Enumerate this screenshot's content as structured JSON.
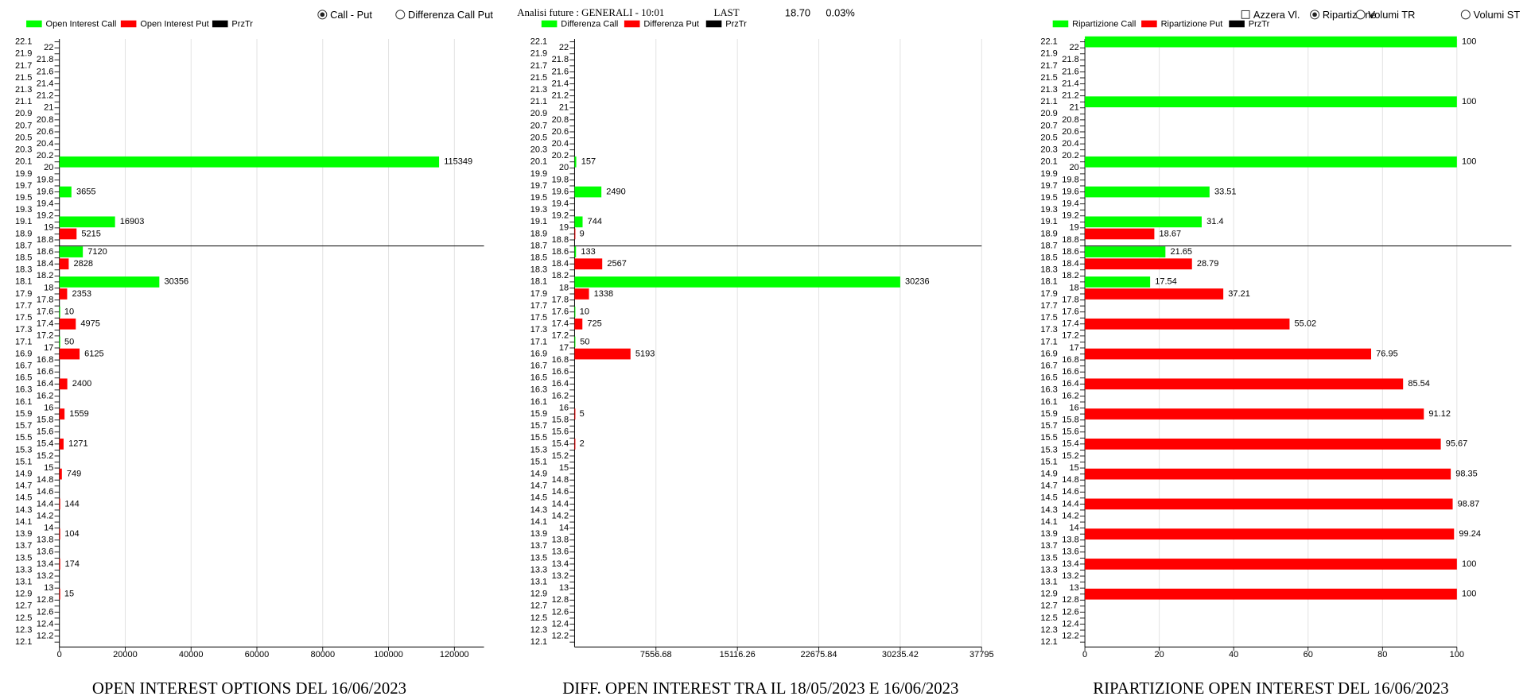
{
  "controls": [
    {
      "type": "radio",
      "label": "Call - Put",
      "checked": true
    },
    {
      "type": "radio",
      "label": "Differenza Call Put",
      "checked": false
    },
    {
      "type": "checkbox",
      "label": "Azzera Vl.",
      "checked": false
    },
    {
      "type": "radio",
      "label": "Ripartizione",
      "checked": true
    },
    {
      "type": "radio",
      "label": "Volumi TR",
      "checked": false
    },
    {
      "type": "radio",
      "label": "Volumi ST",
      "checked": false
    }
  ],
  "header": {
    "analysis": "Analisi future : GENERALI - 10:01",
    "last_label": "LAST",
    "last_price": "18.70",
    "change": "0.03%"
  },
  "chart_data": [
    {
      "type": "bar",
      "orientation": "horizontal",
      "title": "OPEN INTEREST OPTIONS DEL 16/06/2023",
      "x": [
        22,
        21,
        20,
        19.5,
        19,
        18.5,
        18,
        17.5,
        17,
        16.5,
        16,
        15.5,
        15,
        14.5,
        14,
        13.5,
        13
      ],
      "series": [
        {
          "name": "Open Interest Call",
          "color": "#00ff00",
          "values": [
            null,
            null,
            115349,
            3655,
            16903,
            7120,
            30356,
            10,
            50,
            null,
            null,
            null,
            null,
            null,
            null,
            null,
            null
          ]
        },
        {
          "name": "Open Interest Put",
          "color": "#ff0000",
          "values": [
            null,
            null,
            null,
            null,
            5215,
            2828,
            2353,
            4975,
            6125,
            2400,
            1559,
            1271,
            749,
            144,
            104,
            174,
            15
          ]
        }
      ],
      "price_line": {
        "name": "PrzTr",
        "color": "#000000",
        "value": 18.7
      },
      "xlim": [
        0,
        129000
      ],
      "xticks": [
        0,
        20000,
        40000,
        60000,
        80000,
        100000,
        120000
      ],
      "ylim": [
        12.05,
        22.15
      ],
      "yticks": [
        22.1,
        22,
        21.9,
        21.8,
        21.7,
        21.6,
        21.5,
        21.4,
        21.3,
        21.2,
        21.1,
        21,
        20.9,
        20.8,
        20.7,
        20.6,
        20.5,
        20.4,
        20.3,
        20.2,
        20.1,
        20,
        19.9,
        19.8,
        19.7,
        19.6,
        19.5,
        19.4,
        19.3,
        19.2,
        19.1,
        19,
        18.9,
        18.8,
        18.7,
        18.6,
        18.5,
        18.4,
        18.3,
        18.2,
        18.1,
        18,
        17.9,
        17.8,
        17.7,
        17.6,
        17.5,
        17.4,
        17.3,
        17.2,
        17.1,
        17,
        16.9,
        16.8,
        16.7,
        16.6,
        16.5,
        16.4,
        16.3,
        16.2,
        16.1,
        16,
        15.9,
        15.8,
        15.7,
        15.6,
        15.5,
        15.4,
        15.3,
        15.2,
        15.1,
        15,
        14.9,
        14.8,
        14.7,
        14.6,
        14.5,
        14.4,
        14.3,
        14.2,
        14.1,
        14,
        13.9,
        13.8,
        13.7,
        13.6,
        13.5,
        13.4,
        13.3,
        13.2,
        13.1,
        13,
        12.9,
        12.8,
        12.7,
        12.6,
        12.5,
        12.4,
        12.3,
        12.2,
        12.1
      ],
      "grid": true
    },
    {
      "type": "bar",
      "orientation": "horizontal",
      "title": "DIFF. OPEN INTEREST TRA IL 18/05/2023 E 16/06/2023",
      "x": [
        22,
        21,
        20,
        19.5,
        19,
        18.5,
        18,
        17.5,
        17,
        16.5,
        16,
        15.5,
        15,
        14.5,
        14,
        13.5,
        13
      ],
      "series": [
        {
          "name": "Differenza Call",
          "color": "#00ff00",
          "values": [
            null,
            null,
            157,
            2490,
            744,
            133,
            30236,
            10,
            50,
            null,
            null,
            null,
            null,
            null,
            null,
            null,
            null
          ]
        },
        {
          "name": "Differenza Put",
          "color": "#ff0000",
          "values": [
            null,
            null,
            null,
            null,
            9,
            2567,
            1338,
            725,
            5193,
            null,
            5,
            2,
            null,
            null,
            null,
            null,
            null
          ]
        }
      ],
      "price_line": {
        "name": "PrzTr",
        "color": "#000000",
        "value": 18.7
      },
      "xlim": [
        0,
        37795
      ],
      "xticks": [
        7556.68,
        15116.26,
        22675.84,
        30235.42,
        37795
      ],
      "ylim": [
        12.05,
        22.15
      ],
      "yticks": [
        22.1,
        22,
        21.9,
        21.8,
        21.7,
        21.6,
        21.5,
        21.4,
        21.3,
        21.2,
        21.1,
        21,
        20.9,
        20.8,
        20.7,
        20.6,
        20.5,
        20.4,
        20.3,
        20.2,
        20.1,
        20,
        19.9,
        19.8,
        19.7,
        19.6,
        19.5,
        19.4,
        19.3,
        19.2,
        19.1,
        19,
        18.9,
        18.8,
        18.7,
        18.6,
        18.5,
        18.4,
        18.3,
        18.2,
        18.1,
        18,
        17.9,
        17.8,
        17.7,
        17.6,
        17.5,
        17.4,
        17.3,
        17.2,
        17.1,
        17,
        16.9,
        16.8,
        16.7,
        16.6,
        16.5,
        16.4,
        16.3,
        16.2,
        16.1,
        16,
        15.9,
        15.8,
        15.7,
        15.6,
        15.5,
        15.4,
        15.3,
        15.2,
        15.1,
        15,
        14.9,
        14.8,
        14.7,
        14.6,
        14.5,
        14.4,
        14.3,
        14.2,
        14.1,
        14,
        13.9,
        13.8,
        13.7,
        13.6,
        13.5,
        13.4,
        13.3,
        13.2,
        13.1,
        13,
        12.9,
        12.8,
        12.7,
        12.6,
        12.5,
        12.4,
        12.3,
        12.2,
        12.1
      ],
      "grid": true
    },
    {
      "type": "bar",
      "orientation": "horizontal",
      "title": "RIPARTIZIONE OPEN INTEREST DEL 16/06/2023",
      "x": [
        22,
        21,
        20,
        19.5,
        19,
        18.5,
        18,
        17.5,
        17,
        16.5,
        16,
        15.5,
        15,
        14.5,
        14,
        13.5,
        13
      ],
      "series": [
        {
          "name": "Ripartizione Call",
          "color": "#00ff00",
          "values": [
            100,
            100,
            100,
            33.51,
            31.4,
            21.65,
            17.54,
            null,
            null,
            null,
            null,
            null,
            null,
            null,
            null,
            null,
            null
          ]
        },
        {
          "name": "Ripartizione Put",
          "color": "#ff0000",
          "values": [
            null,
            null,
            null,
            null,
            18.67,
            28.79,
            37.21,
            55.02,
            76.95,
            85.54,
            91.12,
            95.67,
            98.35,
            98.87,
            99.24,
            100,
            100
          ]
        }
      ],
      "price_line": {
        "name": "PrzTr",
        "color": "#000000",
        "value": 18.7
      },
      "xlim": [
        0,
        100
      ],
      "xticks": [
        0,
        20,
        40,
        60,
        80,
        100
      ],
      "ylim": [
        12.05,
        22.15
      ],
      "yticks": [
        22.1,
        22,
        21.9,
        21.8,
        21.7,
        21.6,
        21.5,
        21.4,
        21.3,
        21.2,
        21.1,
        21,
        20.9,
        20.8,
        20.7,
        20.6,
        20.5,
        20.4,
        20.3,
        20.2,
        20.1,
        20,
        19.9,
        19.8,
        19.7,
        19.6,
        19.5,
        19.4,
        19.3,
        19.2,
        19.1,
        19,
        18.9,
        18.8,
        18.7,
        18.6,
        18.5,
        18.4,
        18.3,
        18.2,
        18.1,
        18,
        17.9,
        17.8,
        17.7,
        17.6,
        17.5,
        17.4,
        17.3,
        17.2,
        17.1,
        17,
        16.9,
        16.8,
        16.7,
        16.6,
        16.5,
        16.4,
        16.3,
        16.2,
        16.1,
        16,
        15.9,
        15.8,
        15.7,
        15.6,
        15.5,
        15.4,
        15.3,
        15.2,
        15.1,
        15,
        14.9,
        14.8,
        14.7,
        14.6,
        14.5,
        14.4,
        14.3,
        14.2,
        14.1,
        14,
        13.9,
        13.8,
        13.7,
        13.6,
        13.5,
        13.4,
        13.3,
        13.2,
        13.1,
        13,
        12.9,
        12.8,
        12.7,
        12.6,
        12.5,
        12.4,
        12.3,
        12.2,
        12.1
      ],
      "grid": true
    }
  ]
}
